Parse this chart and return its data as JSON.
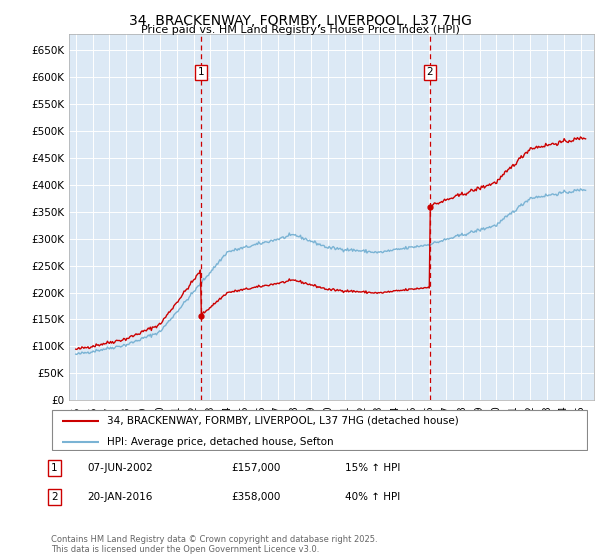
{
  "title": "34, BRACKENWAY, FORMBY, LIVERPOOL, L37 7HG",
  "subtitle": "Price paid vs. HM Land Registry's House Price Index (HPI)",
  "ylabel_ticks": [
    "£0",
    "£50K",
    "£100K",
    "£150K",
    "£200K",
    "£250K",
    "£300K",
    "£350K",
    "£400K",
    "£450K",
    "£500K",
    "£550K",
    "£600K",
    "£650K"
  ],
  "ytick_vals": [
    0,
    50000,
    100000,
    150000,
    200000,
    250000,
    300000,
    350000,
    400000,
    450000,
    500000,
    550000,
    600000,
    650000
  ],
  "ylim": [
    0,
    680000
  ],
  "xlim_start": 1994.6,
  "xlim_end": 2025.8,
  "bg_color": "#dce9f5",
  "grid_color": "#ffffff",
  "red_line_color": "#cc0000",
  "blue_line_color": "#7ab3d4",
  "transaction1_date": 2002.44,
  "transaction1_price": 157000,
  "transaction1_label": "1",
  "transaction2_date": 2016.05,
  "transaction2_price": 358000,
  "transaction2_label": "2",
  "legend_red_label": "34, BRACKENWAY, FORMBY, LIVERPOOL, L37 7HG (detached house)",
  "legend_blue_label": "HPI: Average price, detached house, Sefton",
  "trans1_date_str": "07-JUN-2002",
  "trans1_price_str": "£157,000",
  "trans1_hpi_str": "15% ↑ HPI",
  "trans2_date_str": "20-JAN-2016",
  "trans2_price_str": "£358,000",
  "trans2_hpi_str": "40% ↑ HPI",
  "copyright": "Contains HM Land Registry data © Crown copyright and database right 2025.\nThis data is licensed under the Open Government Licence v3.0."
}
